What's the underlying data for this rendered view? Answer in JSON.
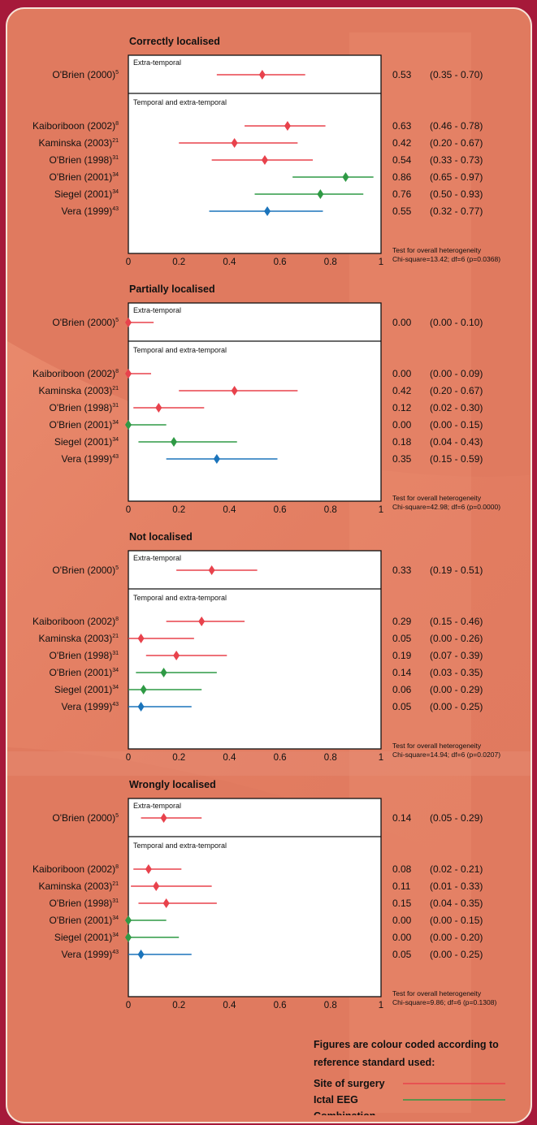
{
  "colors": {
    "site_of_surgery": "#e8424c",
    "ictal_eeg": "#2f9a45",
    "combination": "#1b74bb"
  },
  "group_labels": {
    "extra": "Extra-temporal",
    "both": "Temporal and extra-temporal"
  },
  "x_ticks": [
    "0",
    "0.2",
    "0.4",
    "0.6",
    "0.8",
    "1"
  ],
  "legend": {
    "heading_line1": "Figures are colour coded according to",
    "heading_line2": "reference standard used:",
    "items": [
      {
        "label": "Site of surgery",
        "color": "#e8424c"
      },
      {
        "label": "Ictal EEG",
        "color": "#2f9a45"
      },
      {
        "label": "Combination",
        "color": "#1b74bb"
      }
    ]
  },
  "chart_data": [
    {
      "type": "forest",
      "title": "Correctly localised",
      "xlim": [
        0,
        1
      ],
      "heterogeneity_line1": "Test for overall heterogeneity",
      "heterogeneity_line2": "Chi-square=13.42; df=6 (p=0.0368)",
      "studies": [
        {
          "name": "O'Brien (2000)",
          "ref": "5",
          "group": "extra",
          "est": 0.53,
          "low": 0.35,
          "high": 0.7,
          "standard": "site_of_surgery",
          "est_label": "0.53",
          "ci_label": "(0.35 - 0.70)"
        },
        {
          "name": "Kaiboriboon (2002)",
          "ref": "8",
          "group": "both",
          "est": 0.63,
          "low": 0.46,
          "high": 0.78,
          "standard": "site_of_surgery",
          "est_label": "0.63",
          "ci_label": "(0.46 - 0.78)"
        },
        {
          "name": "Kaminska (2003)",
          "ref": "21",
          "group": "both",
          "est": 0.42,
          "low": 0.2,
          "high": 0.67,
          "standard": "site_of_surgery",
          "est_label": "0.42",
          "ci_label": "(0.20 - 0.67)"
        },
        {
          "name": "O'Brien (1998)",
          "ref": "31",
          "group": "both",
          "est": 0.54,
          "low": 0.33,
          "high": 0.73,
          "standard": "site_of_surgery",
          "est_label": "0.54",
          "ci_label": "(0.33 - 0.73)"
        },
        {
          "name": "O'Brien (2001)",
          "ref": "34",
          "group": "both",
          "est": 0.86,
          "low": 0.65,
          "high": 0.97,
          "standard": "ictal_eeg",
          "est_label": "0.86",
          "ci_label": "(0.65 - 0.97)"
        },
        {
          "name": "Siegel (2001)",
          "ref": "34",
          "group": "both",
          "est": 0.76,
          "low": 0.5,
          "high": 0.93,
          "standard": "ictal_eeg",
          "est_label": "0.76",
          "ci_label": "(0.50 - 0.93)"
        },
        {
          "name": "Vera (1999)",
          "ref": "43",
          "group": "both",
          "est": 0.55,
          "low": 0.32,
          "high": 0.77,
          "standard": "combination",
          "est_label": "0.55",
          "ci_label": "(0.32 - 0.77)"
        }
      ]
    },
    {
      "type": "forest",
      "title": "Partially localised",
      "xlim": [
        0,
        1
      ],
      "heterogeneity_line1": "Test for overall heterogeneity",
      "heterogeneity_line2": "Chi-square=42.98; df=6 (p=0.0000)",
      "studies": [
        {
          "name": "O'Brien (2000)",
          "ref": "5",
          "group": "extra",
          "est": 0.0,
          "low": 0.0,
          "high": 0.1,
          "standard": "site_of_surgery",
          "est_label": "0.00",
          "ci_label": "(0.00 - 0.10)"
        },
        {
          "name": "Kaiboriboon (2002)",
          "ref": "8",
          "group": "both",
          "est": 0.0,
          "low": 0.0,
          "high": 0.09,
          "standard": "site_of_surgery",
          "est_label": "0.00",
          "ci_label": "(0.00 - 0.09)"
        },
        {
          "name": "Kaminska (2003)",
          "ref": "21",
          "group": "both",
          "est": 0.42,
          "low": 0.2,
          "high": 0.67,
          "standard": "site_of_surgery",
          "est_label": "0.42",
          "ci_label": "(0.20 - 0.67)"
        },
        {
          "name": "O'Brien (1998)",
          "ref": "31",
          "group": "both",
          "est": 0.12,
          "low": 0.02,
          "high": 0.3,
          "standard": "site_of_surgery",
          "est_label": "0.12",
          "ci_label": "(0.02 - 0.30)"
        },
        {
          "name": "O'Brien (2001)",
          "ref": "34",
          "group": "both",
          "est": 0.0,
          "low": 0.0,
          "high": 0.15,
          "standard": "ictal_eeg",
          "est_label": "0.00",
          "ci_label": "(0.00 - 0.15)"
        },
        {
          "name": "Siegel (2001)",
          "ref": "34",
          "group": "both",
          "est": 0.18,
          "low": 0.04,
          "high": 0.43,
          "standard": "ictal_eeg",
          "est_label": "0.18",
          "ci_label": "(0.04 - 0.43)"
        },
        {
          "name": "Vera (1999)",
          "ref": "43",
          "group": "both",
          "est": 0.35,
          "low": 0.15,
          "high": 0.59,
          "standard": "combination",
          "est_label": "0.35",
          "ci_label": "(0.15 - 0.59)"
        }
      ]
    },
    {
      "type": "forest",
      "title": "Not localised",
      "xlim": [
        0,
        1
      ],
      "heterogeneity_line1": "Test for overall heterogeneity",
      "heterogeneity_line2": "Chi-square=14.94; df=6 (p=0.0207)",
      "studies": [
        {
          "name": "O'Brien (2000)",
          "ref": "5",
          "group": "extra",
          "est": 0.33,
          "low": 0.19,
          "high": 0.51,
          "standard": "site_of_surgery",
          "est_label": "0.33",
          "ci_label": "(0.19 - 0.51)"
        },
        {
          "name": "Kaiboriboon (2002)",
          "ref": "8",
          "group": "both",
          "est": 0.29,
          "low": 0.15,
          "high": 0.46,
          "standard": "site_of_surgery",
          "est_label": "0.29",
          "ci_label": "(0.15 - 0.46)"
        },
        {
          "name": "Kaminska (2003)",
          "ref": "21",
          "group": "both",
          "est": 0.05,
          "low": 0.0,
          "high": 0.26,
          "standard": "site_of_surgery",
          "est_label": "0.05",
          "ci_label": "(0.00 - 0.26)"
        },
        {
          "name": "O'Brien (1998)",
          "ref": "31",
          "group": "both",
          "est": 0.19,
          "low": 0.07,
          "high": 0.39,
          "standard": "site_of_surgery",
          "est_label": "0.19",
          "ci_label": "(0.07 - 0.39)"
        },
        {
          "name": "O'Brien (2001)",
          "ref": "34",
          "group": "both",
          "est": 0.14,
          "low": 0.03,
          "high": 0.35,
          "standard": "ictal_eeg",
          "est_label": "0.14",
          "ci_label": "(0.03 - 0.35)"
        },
        {
          "name": "Siegel (2001)",
          "ref": "34",
          "group": "both",
          "est": 0.06,
          "low": 0.0,
          "high": 0.29,
          "standard": "ictal_eeg",
          "est_label": "0.06",
          "ci_label": "(0.00 - 0.29)"
        },
        {
          "name": "Vera (1999)",
          "ref": "43",
          "group": "both",
          "est": 0.05,
          "low": 0.0,
          "high": 0.25,
          "standard": "combination",
          "est_label": "0.05",
          "ci_label": "(0.00 - 0.25)"
        }
      ]
    },
    {
      "type": "forest",
      "title": "Wrongly localised",
      "xlim": [
        0,
        1
      ],
      "heterogeneity_line1": "Test for overall heterogeneity",
      "heterogeneity_line2": "Chi-square=9.86; df=6 (p=0.1308)",
      "studies": [
        {
          "name": "O'Brien (2000)",
          "ref": "5",
          "group": "extra",
          "est": 0.14,
          "low": 0.05,
          "high": 0.29,
          "standard": "site_of_surgery",
          "est_label": "0.14",
          "ci_label": "(0.05 - 0.29)"
        },
        {
          "name": "Kaiboriboon (2002)",
          "ref": "8",
          "group": "both",
          "est": 0.08,
          "low": 0.02,
          "high": 0.21,
          "standard": "site_of_surgery",
          "est_label": "0.08",
          "ci_label": "(0.02 - 0.21)"
        },
        {
          "name": "Kaminska (2003)",
          "ref": "21",
          "group": "both",
          "est": 0.11,
          "low": 0.01,
          "high": 0.33,
          "standard": "site_of_surgery",
          "est_label": "0.11",
          "ci_label": "(0.01 - 0.33)"
        },
        {
          "name": "O'Brien (1998)",
          "ref": "31",
          "group": "both",
          "est": 0.15,
          "low": 0.04,
          "high": 0.35,
          "standard": "site_of_surgery",
          "est_label": "0.15",
          "ci_label": "(0.04 - 0.35)"
        },
        {
          "name": "O'Brien (2001)",
          "ref": "34",
          "group": "both",
          "est": 0.0,
          "low": 0.0,
          "high": 0.15,
          "standard": "ictal_eeg",
          "est_label": "0.00",
          "ci_label": "(0.00 - 0.15)"
        },
        {
          "name": "Siegel (2001)",
          "ref": "34",
          "group": "both",
          "est": 0.0,
          "low": 0.0,
          "high": 0.2,
          "standard": "ictal_eeg",
          "est_label": "0.00",
          "ci_label": "(0.00 - 0.20)"
        },
        {
          "name": "Vera (1999)",
          "ref": "43",
          "group": "both",
          "est": 0.05,
          "low": 0.0,
          "high": 0.25,
          "standard": "combination",
          "est_label": "0.05",
          "ci_label": "(0.00 - 0.25)"
        }
      ]
    }
  ]
}
